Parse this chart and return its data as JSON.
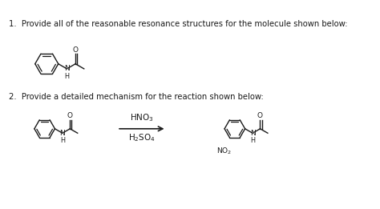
{
  "bg_color": "#ffffff",
  "fig_width": 4.74,
  "fig_height": 2.61,
  "dpi": 100,
  "q1_text": "1.  Provide all of the reasonable resonance structures for the molecule shown below:",
  "q2_text": "2.  Provide a detailed mechanism for the reaction shown below:",
  "reagent1": "HNO$_3$",
  "reagent2": "H$_2$SO$_4$",
  "product_label": "NO$_2$",
  "font_size_q": 7.2,
  "font_size_reagent": 7.5,
  "font_size_atom": 6.5,
  "line_color": "#1a1a1a",
  "line_width": 1.0
}
